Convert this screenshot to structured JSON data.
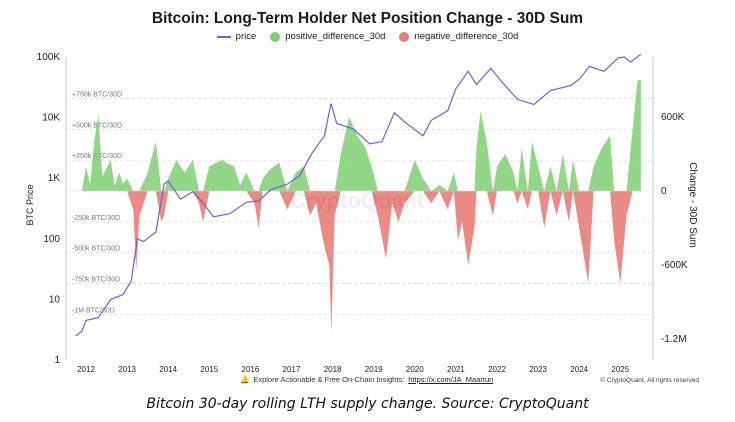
{
  "chart_data": {
    "type": "area",
    "title": "Bitcoin: Long-Term Holder Net Position Change - 30D Sum",
    "left_axis": {
      "label": "BTC Price",
      "scale": "log",
      "ticks": [
        "100K",
        "10K",
        "1K",
        "100",
        "10",
        "1"
      ]
    },
    "right_axis": {
      "label": "Change - 30D Sum",
      "ticks": [
        "600K",
        "0",
        "-600K",
        "-1.2M"
      ]
    },
    "x_ticks": [
      "2012",
      "2013",
      "2014",
      "2015",
      "2016",
      "2017",
      "2018",
      "2019",
      "2020",
      "2021",
      "2022",
      "2023",
      "2024",
      "2025"
    ],
    "ref_lines": [
      "+750k BTC/30D",
      "+500k BTC/30D",
      "+250k BTC/30D",
      "-250k BTC/30D",
      "-500k BTC/30D",
      "-750k BTC/30D",
      "-1M BTC/30D"
    ],
    "ref_values": [
      750000,
      500000,
      250000,
      -250000,
      -500000,
      -750000,
      -1000000
    ],
    "legend": [
      "price",
      "positive_difference_30d",
      "negative_difference_30d"
    ],
    "colors": {
      "price": "#6c63d9",
      "positive": "#7fcf72",
      "negative": "#ea7d78"
    },
    "price_series": [
      [
        2011.75,
        2.5
      ],
      [
        2011.9,
        3
      ],
      [
        2012.0,
        4.5
      ],
      [
        2012.3,
        5
      ],
      [
        2012.6,
        10
      ],
      [
        2012.9,
        12
      ],
      [
        2013.1,
        20
      ],
      [
        2013.25,
        100
      ],
      [
        2013.4,
        90
      ],
      [
        2013.7,
        130
      ],
      [
        2013.9,
        800
      ],
      [
        2014.0,
        900
      ],
      [
        2014.3,
        450
      ],
      [
        2014.6,
        600
      ],
      [
        2014.9,
        350
      ],
      [
        2015.1,
        230
      ],
      [
        2015.5,
        260
      ],
      [
        2015.9,
        400
      ],
      [
        2016.2,
        420
      ],
      [
        2016.5,
        650
      ],
      [
        2016.9,
        800
      ],
      [
        2017.2,
        1100
      ],
      [
        2017.5,
        2600
      ],
      [
        2017.8,
        5000
      ],
      [
        2017.96,
        17000
      ],
      [
        2018.1,
        8000
      ],
      [
        2018.5,
        6500
      ],
      [
        2018.9,
        3700
      ],
      [
        2019.2,
        4000
      ],
      [
        2019.5,
        12000
      ],
      [
        2019.8,
        8000
      ],
      [
        2020.2,
        5000
      ],
      [
        2020.4,
        9000
      ],
      [
        2020.8,
        13000
      ],
      [
        2021.0,
        30000
      ],
      [
        2021.3,
        58000
      ],
      [
        2021.5,
        35000
      ],
      [
        2021.85,
        65000
      ],
      [
        2022.1,
        40000
      ],
      [
        2022.5,
        20000
      ],
      [
        2022.9,
        16500
      ],
      [
        2023.3,
        28000
      ],
      [
        2023.8,
        34000
      ],
      [
        2024.0,
        43000
      ],
      [
        2024.25,
        70000
      ],
      [
        2024.6,
        58000
      ],
      [
        2024.95,
        97000
      ],
      [
        2025.1,
        100000
      ],
      [
        2025.25,
        82000
      ],
      [
        2025.45,
        105000
      ],
      [
        2025.5,
        110000
      ]
    ],
    "change_series": [
      [
        2011.9,
        0
      ],
      [
        2012.0,
        200000
      ],
      [
        2012.1,
        50000
      ],
      [
        2012.2,
        400000
      ],
      [
        2012.3,
        620000
      ],
      [
        2012.4,
        120000
      ],
      [
        2012.6,
        250000
      ],
      [
        2012.7,
        40000
      ],
      [
        2012.8,
        150000
      ],
      [
        2012.9,
        60000
      ],
      [
        2013.0,
        100000
      ],
      [
        2013.15,
        -150000
      ],
      [
        2013.22,
        -650000
      ],
      [
        2013.3,
        -200000
      ],
      [
        2013.5,
        150000
      ],
      [
        2013.7,
        400000
      ],
      [
        2013.83,
        -250000
      ],
      [
        2013.9,
        -200000
      ],
      [
        2014.0,
        100000
      ],
      [
        2014.2,
        250000
      ],
      [
        2014.4,
        150000
      ],
      [
        2014.6,
        250000
      ],
      [
        2014.75,
        -100000
      ],
      [
        2014.85,
        -250000
      ],
      [
        2015.0,
        200000
      ],
      [
        2015.3,
        250000
      ],
      [
        2015.6,
        200000
      ],
      [
        2015.75,
        50000
      ],
      [
        2015.9,
        150000
      ],
      [
        2016.1,
        -100000
      ],
      [
        2016.2,
        -300000
      ],
      [
        2016.3,
        100000
      ],
      [
        2016.5,
        180000
      ],
      [
        2016.7,
        230000
      ],
      [
        2016.9,
        -150000
      ],
      [
        2017.1,
        150000
      ],
      [
        2017.3,
        200000
      ],
      [
        2017.45,
        -200000
      ],
      [
        2017.6,
        -100000
      ],
      [
        2017.8,
        -450000
      ],
      [
        2017.92,
        -600000
      ],
      [
        2017.97,
        -1150000
      ],
      [
        2018.05,
        -200000
      ],
      [
        2018.2,
        300000
      ],
      [
        2018.4,
        600000
      ],
      [
        2018.6,
        450000
      ],
      [
        2018.8,
        350000
      ],
      [
        2018.95,
        200000
      ],
      [
        2019.1,
        -200000
      ],
      [
        2019.3,
        -550000
      ],
      [
        2019.45,
        -100000
      ],
      [
        2019.6,
        -250000
      ],
      [
        2019.75,
        -100000
      ],
      [
        2020.0,
        250000
      ],
      [
        2020.2,
        100000
      ],
      [
        2020.4,
        -100000
      ],
      [
        2020.6,
        50000
      ],
      [
        2020.8,
        -150000
      ],
      [
        2020.95,
        150000
      ],
      [
        2021.05,
        -400000
      ],
      [
        2021.15,
        -250000
      ],
      [
        2021.3,
        -600000
      ],
      [
        2021.45,
        -300000
      ],
      [
        2021.5,
        350000
      ],
      [
        2021.6,
        650000
      ],
      [
        2021.75,
        400000
      ],
      [
        2021.9,
        -200000
      ],
      [
        2022.0,
        200000
      ],
      [
        2022.2,
        300000
      ],
      [
        2022.4,
        150000
      ],
      [
        2022.5,
        -100000
      ],
      [
        2022.6,
        350000
      ],
      [
        2022.75,
        -150000
      ],
      [
        2022.85,
        400000
      ],
      [
        2023.0,
        200000
      ],
      [
        2023.15,
        -300000
      ],
      [
        2023.3,
        200000
      ],
      [
        2023.45,
        -200000
      ],
      [
        2023.6,
        300000
      ],
      [
        2023.75,
        -250000
      ],
      [
        2023.85,
        250000
      ],
      [
        2024.0,
        -300000
      ],
      [
        2024.1,
        -500000
      ],
      [
        2024.22,
        -750000
      ],
      [
        2024.35,
        200000
      ],
      [
        2024.55,
        350000
      ],
      [
        2024.75,
        450000
      ],
      [
        2024.85,
        -400000
      ],
      [
        2025.0,
        -750000
      ],
      [
        2025.15,
        -200000
      ],
      [
        2025.3,
        500000
      ],
      [
        2025.42,
        900000
      ],
      [
        2025.5,
        900000
      ]
    ]
  },
  "footer": {
    "text": "Explore Actionable & Free On-Chain Insights:",
    "link": "https://x.com/JA_Maartun",
    "copyright": "© CryptoQuant. All rights reserved"
  },
  "watermark": "CryptoQuant",
  "caption": "Bitcoin 30-day rolling LTH supply change. Source: CryptoQuant"
}
